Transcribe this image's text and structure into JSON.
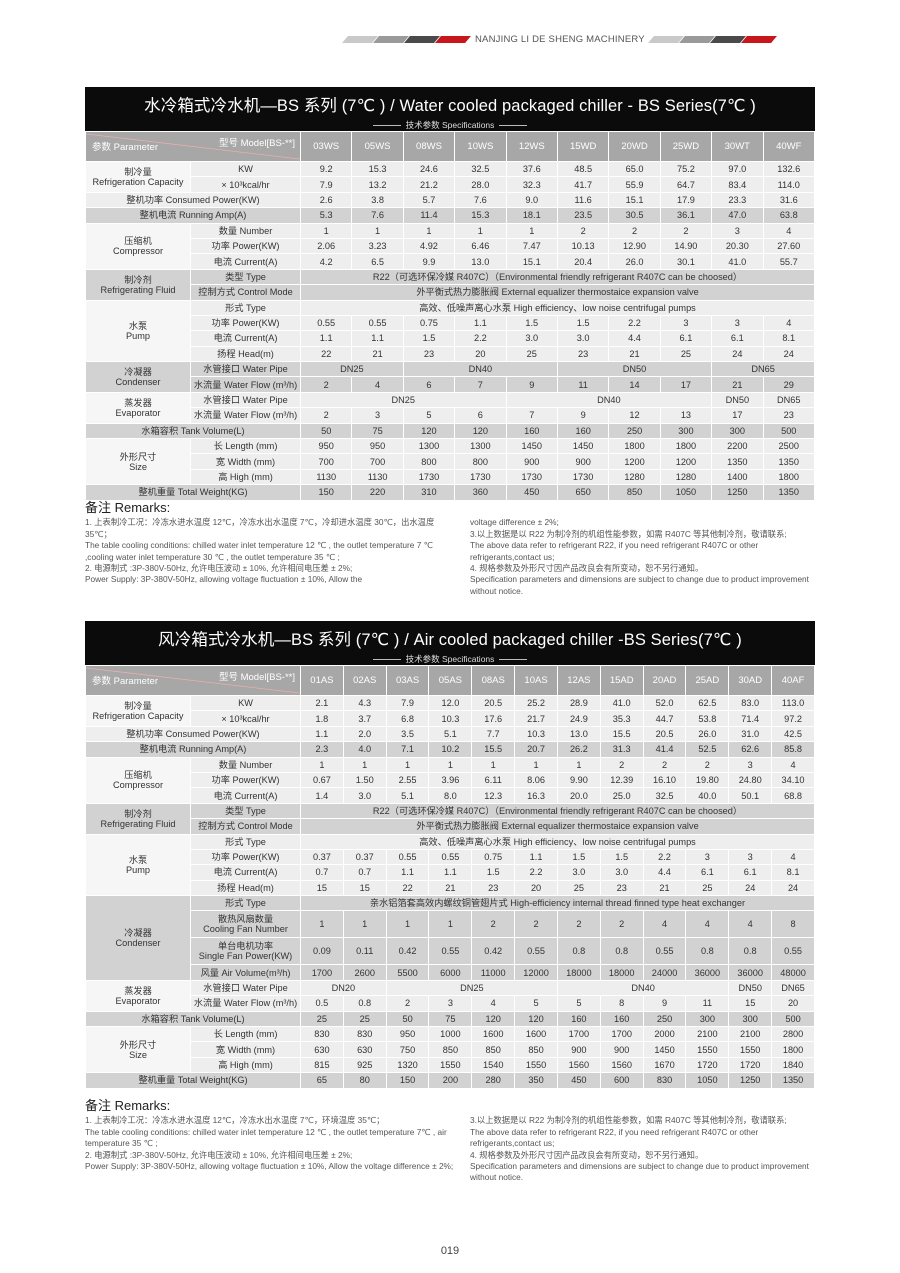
{
  "header": {
    "brand": "NANJING LI DE SHENG MACHINERY"
  },
  "colors": {
    "accent": "#c8161d",
    "title_bg": "#0b0b0b",
    "model_header": "#a7a7a7"
  },
  "table1": {
    "title": "水冷箱式冷水机—BS 系列 (7℃ ) / Water cooled packaged chiller - BS Series(7℃ )",
    "subtitle": "技术参数 Specifications",
    "param_label": "参数 Parameter",
    "model_label": "型号 Model[BS-**]",
    "models": [
      "03WS",
      "05WS",
      "08WS",
      "10WS",
      "12WS",
      "15WD",
      "20WD",
      "25WD",
      "30WT",
      "40WF"
    ],
    "rows": [
      {
        "group": "制冷量\nRefrigeration Capacity",
        "span": 2,
        "sub": "KW",
        "values": [
          "9.2",
          "15.3",
          "24.6",
          "32.5",
          "37.6",
          "48.5",
          "65.0",
          "75.2",
          "97.0",
          "132.6"
        ]
      },
      {
        "sub": "× 10³kcal/hr",
        "values": [
          "7.9",
          "13.2",
          "21.2",
          "28.0",
          "32.3",
          "41.7",
          "55.9",
          "64.7",
          "83.4",
          "114.0"
        ]
      },
      {
        "label": "整机功率 Consumed Power(KW)",
        "values": [
          "2.6",
          "3.8",
          "5.7",
          "7.6",
          "9.0",
          "11.6",
          "15.1",
          "17.9",
          "23.3",
          "31.6"
        ]
      },
      {
        "label": "整机电流 Running Amp(A)",
        "values": [
          "5.3",
          "7.6",
          "11.4",
          "15.3",
          "18.1",
          "23.5",
          "30.5",
          "36.1",
          "47.0",
          "63.8"
        ]
      },
      {
        "group": "压缩机\nCompressor",
        "span": 3,
        "sub": "数量 Number",
        "values": [
          "1",
          "1",
          "1",
          "1",
          "1",
          "2",
          "2",
          "2",
          "3",
          "4"
        ]
      },
      {
        "sub": "功率 Power(KW)",
        "values": [
          "2.06",
          "3.23",
          "4.92",
          "6.46",
          "7.47",
          "10.13",
          "12.90",
          "14.90",
          "20.30",
          "27.60"
        ]
      },
      {
        "sub": "电流 Current(A)",
        "values": [
          "4.2",
          "6.5",
          "9.9",
          "13.0",
          "15.1",
          "20.4",
          "26.0",
          "30.1",
          "41.0",
          "55.7"
        ]
      },
      {
        "group": "制冷剂\nRefrigerating Fluid",
        "span": 2,
        "sub": "类型 Type",
        "values": [
          {
            "v": "R22（可选环保冷媒 R407C）（Environmental friendly refrigerant R407C can be choosed）",
            "span": 10
          }
        ]
      },
      {
        "sub": "控制方式 Control Mode",
        "values": [
          {
            "v": "外平衡式热力膨胀阀 External equalizer thermostaice expansion valve",
            "span": 10
          }
        ]
      },
      {
        "group": "水泵\nPump",
        "span": 4,
        "sub": "形式 Type",
        "values": [
          {
            "v": "高效、低噪声离心水泵 High efficiency、low noise centrifugal pumps",
            "span": 10
          }
        ]
      },
      {
        "sub": "功率 Power(KW)",
        "values": [
          "0.55",
          "0.55",
          "0.75",
          "1.1",
          "1.5",
          "1.5",
          "2.2",
          "3",
          "3",
          "4"
        ]
      },
      {
        "sub": "电流 Current(A)",
        "values": [
          "1.1",
          "1.1",
          "1.5",
          "2.2",
          "3.0",
          "3.0",
          "4.4",
          "6.1",
          "6.1",
          "8.1"
        ]
      },
      {
        "sub": "扬程 Head(m)",
        "values": [
          "22",
          "21",
          "23",
          "20",
          "25",
          "23",
          "21",
          "25",
          "24",
          "24"
        ]
      },
      {
        "group": "冷凝器\nCondenser",
        "span": 2,
        "sub": "水管接口 Water Pipe",
        "values": [
          {
            "v": "DN25",
            "span": 2
          },
          {
            "v": "DN40",
            "span": 3
          },
          {
            "v": "DN50",
            "span": 3
          },
          {
            "v": "DN65",
            "span": 2
          }
        ]
      },
      {
        "sub": "水流量 Water Flow (m³/h)",
        "values": [
          "2",
          "4",
          "6",
          "7",
          "9",
          "11",
          "14",
          "17",
          "21",
          "29"
        ]
      },
      {
        "group": "蒸发器\nEvaporator",
        "span": 2,
        "sub": "水管接口 Water Pipe",
        "values": [
          {
            "v": "DN25",
            "span": 4
          },
          {
            "v": "DN40",
            "span": 4
          },
          "DN50",
          "DN65"
        ]
      },
      {
        "sub": "水流量 Water Flow (m³/h)",
        "values": [
          "2",
          "3",
          "5",
          "6",
          "7",
          "9",
          "12",
          "13",
          "17",
          "23"
        ]
      },
      {
        "label": "水箱容积 Tank Volume(L)",
        "values": [
          "50",
          "75",
          "120",
          "120",
          "160",
          "160",
          "250",
          "300",
          "300",
          "500"
        ]
      },
      {
        "group": "外形尺寸\nSize",
        "span": 3,
        "sub": "长 Length (mm)",
        "values": [
          "950",
          "950",
          "1300",
          "1300",
          "1450",
          "1450",
          "1800",
          "1800",
          "2200",
          "2500"
        ]
      },
      {
        "sub": "宽 Width (mm)",
        "values": [
          "700",
          "700",
          "800",
          "800",
          "900",
          "900",
          "1200",
          "1200",
          "1350",
          "1350"
        ]
      },
      {
        "sub": "高 High (mm)",
        "values": [
          "1130",
          "1130",
          "1730",
          "1730",
          "1730",
          "1730",
          "1280",
          "1280",
          "1400",
          "1800"
        ]
      },
      {
        "label": "整机重量 Total Weight(KG)",
        "values": [
          "150",
          "220",
          "310",
          "360",
          "450",
          "650",
          "850",
          "1050",
          "1250",
          "1350"
        ]
      }
    ],
    "remarks_title": "备注 Remarks:",
    "remarks_left": "1. 上表制冷工况：冷冻水进水温度 12℃，冷冻水出水温度 7℃，冷却进水温度 30℃，出水温度 35℃；\nThe table cooling conditions: chilled water inlet temperature 12 ℃ , the outlet temperature 7 ℃ ,cooling water inlet temperature 30 ℃ , the outlet temperature 35 ℃ ;\n2. 电源制式 :3P-380V-50Hz, 允许电压波动 ± 10%, 允许相间电压差 ± 2%;\nPower Supply: 3P-380V-50Hz, allowing voltage fluctuation ± 10%, Allow the",
    "remarks_right": "voltage difference ± 2%;\n3.以上数据是以 R22 为制冷剂的机组性能参数，如需 R407C 等其他制冷剂，敬请联系;\nThe above data refer to refrigerant R22, if you need refrigerant R407C or other refrigerants,contact us;\n4. 规格参数及外形尺寸因产品改良会有所变动，恕不另行通知。\nSpecification parameters and dimensions are subject to change due to product improvement without notice."
  },
  "table2": {
    "title": "风冷箱式冷水机—BS 系列 (7℃ ) / Air cooled packaged chiller -BS Series(7℃ )",
    "subtitle": "技术参数 Specifications",
    "param_label": "参数 Parameter",
    "model_label": "型号 Model[BS-**]",
    "models": [
      "01AS",
      "02AS",
      "03AS",
      "05AS",
      "08AS",
      "10AS",
      "12AS",
      "15AD",
      "20AD",
      "25AD",
      "30AD",
      "40AF"
    ],
    "rows": [
      {
        "group": "制冷量\nRefrigeration Capacity",
        "span": 2,
        "sub": "KW",
        "values": [
          "2.1",
          "4.3",
          "7.9",
          "12.0",
          "20.5",
          "25.2",
          "28.9",
          "41.0",
          "52.0",
          "62.5",
          "83.0",
          "113.0"
        ]
      },
      {
        "sub": "× 10³kcal/hr",
        "values": [
          "1.8",
          "3.7",
          "6.8",
          "10.3",
          "17.6",
          "21.7",
          "24.9",
          "35.3",
          "44.7",
          "53.8",
          "71.4",
          "97.2"
        ]
      },
      {
        "label": "整机功率 Consumed Power(KW)",
        "values": [
          "1.1",
          "2.0",
          "3.5",
          "5.1",
          "7.7",
          "10.3",
          "13.0",
          "15.5",
          "20.5",
          "26.0",
          "31.0",
          "42.5"
        ]
      },
      {
        "label": "整机电流 Running Amp(A)",
        "values": [
          "2.3",
          "4.0",
          "7.1",
          "10.2",
          "15.5",
          "20.7",
          "26.2",
          "31.3",
          "41.4",
          "52.5",
          "62.6",
          "85.8"
        ]
      },
      {
        "group": "压缩机\nCompressor",
        "span": 3,
        "sub": "数量 Number",
        "values": [
          "1",
          "1",
          "1",
          "1",
          "1",
          "1",
          "1",
          "2",
          "2",
          "2",
          "3",
          "4"
        ]
      },
      {
        "sub": "功率 Power(KW)",
        "values": [
          "0.67",
          "1.50",
          "2.55",
          "3.96",
          "6.11",
          "8.06",
          "9.90",
          "12.39",
          "16.10",
          "19.80",
          "24.80",
          "34.10"
        ]
      },
      {
        "sub": "电流 Current(A)",
        "values": [
          "1.4",
          "3.0",
          "5.1",
          "8.0",
          "12.3",
          "16.3",
          "20.0",
          "25.0",
          "32.5",
          "40.0",
          "50.1",
          "68.8"
        ]
      },
      {
        "group": "制冷剂\nRefrigerating Fluid",
        "span": 2,
        "sub": "类型 Type",
        "values": [
          {
            "v": "R22（可选环保冷媒 R407C）（Environmental friendly refrigerant R407C can be choosed）",
            "span": 12
          }
        ]
      },
      {
        "sub": "控制方式 Control Mode",
        "values": [
          {
            "v": "外平衡式热力膨胀阀 External equalizer thermostaice expansion valve",
            "span": 12
          }
        ]
      },
      {
        "group": "水泵\nPump",
        "span": 4,
        "sub": "形式 Type",
        "values": [
          {
            "v": "高效、低噪声离心水泵 High efficiency、low noise centrifugal pumps",
            "span": 12
          }
        ]
      },
      {
        "sub": "功率 Power(KW)",
        "values": [
          "0.37",
          "0.37",
          "0.55",
          "0.55",
          "0.75",
          "1.1",
          "1.5",
          "1.5",
          "2.2",
          "3",
          "3",
          "4"
        ]
      },
      {
        "sub": "电流 Current(A)",
        "values": [
          "0.7",
          "0.7",
          "1.1",
          "1.1",
          "1.5",
          "2.2",
          "3.0",
          "3.0",
          "4.4",
          "6.1",
          "6.1",
          "8.1"
        ]
      },
      {
        "sub": "扬程 Head(m)",
        "values": [
          "15",
          "15",
          "22",
          "21",
          "23",
          "20",
          "25",
          "23",
          "21",
          "25",
          "24",
          "24"
        ]
      },
      {
        "group": "冷凝器\nCondenser",
        "span": 4,
        "sub": "形式 Type",
        "values": [
          {
            "v": "亲水铝箔套高效内螺纹铜管翅片式 High-efficiency internal thread finned type heat exchanger",
            "span": 12
          }
        ]
      },
      {
        "sub": "散热风扇数量\nCooling Fan Number",
        "values": [
          "1",
          "1",
          "1",
          "1",
          "2",
          "2",
          "2",
          "2",
          "4",
          "4",
          "4",
          "8"
        ]
      },
      {
        "sub": "单台电机功率\nSingle Fan Power(KW)",
        "values": [
          "0.09",
          "0.11",
          "0.42",
          "0.55",
          "0.42",
          "0.55",
          "0.8",
          "0.8",
          "0.55",
          "0.8",
          "0.8",
          "0.55"
        ]
      },
      {
        "sub": "风量 Air Volume(m³/h)",
        "values": [
          "1700",
          "2600",
          "5500",
          "6000",
          "11000",
          "12000",
          "18000",
          "18000",
          "24000",
          "36000",
          "36000",
          "48000"
        ]
      },
      {
        "group": "蒸发器\nEvaporator",
        "span": 2,
        "sub": "水管接口 Water Pipe",
        "values": [
          {
            "v": "DN20",
            "span": 2
          },
          {
            "v": "DN25",
            "span": 4
          },
          {
            "v": "DN40",
            "span": 4
          },
          "DN50",
          "DN65"
        ]
      },
      {
        "sub": "水流量 Water Flow (m³/h)",
        "values": [
          "0.5",
          "0.8",
          "2",
          "3",
          "4",
          "5",
          "5",
          "8",
          "9",
          "11",
          "15",
          "20"
        ]
      },
      {
        "label": "水箱容积 Tank Volume(L)",
        "values": [
          "25",
          "25",
          "50",
          "75",
          "120",
          "120",
          "160",
          "160",
          "250",
          "300",
          "300",
          "500"
        ]
      },
      {
        "group": "外形尺寸\nSize",
        "span": 3,
        "sub": "长 Length (mm)",
        "values": [
          "830",
          "830",
          "950",
          "1000",
          "1600",
          "1600",
          "1700",
          "1700",
          "2000",
          "2100",
          "2100",
          "2800"
        ]
      },
      {
        "sub": "宽 Width (mm)",
        "values": [
          "630",
          "630",
          "750",
          "850",
          "850",
          "850",
          "900",
          "900",
          "1450",
          "1550",
          "1550",
          "1800"
        ]
      },
      {
        "sub": "高 High (mm)",
        "values": [
          "815",
          "925",
          "1320",
          "1550",
          "1540",
          "1550",
          "1560",
          "1560",
          "1670",
          "1720",
          "1720",
          "1840"
        ]
      },
      {
        "label": "整机重量 Total Weight(KG)",
        "values": [
          "65",
          "80",
          "150",
          "200",
          "280",
          "350",
          "450",
          "600",
          "830",
          "1050",
          "1250",
          "1350"
        ]
      }
    ],
    "remarks_title": "备注 Remarks:",
    "remarks_left": "1. 上表制冷工况：冷冻水进水温度 12℃，冷冻水出水温度 7℃，环境温度 35℃；\nThe table cooling conditions: chilled water inlet temperature 12 ℃ , the outlet temperature 7℃ , air temperature 35 ℃ ;\n2. 电源制式 :3P-380V-50Hz, 允许电压波动 ± 10%, 允许相间电压差 ± 2%;\nPower Supply: 3P-380V-50Hz, allowing voltage fluctuation ± 10%, Allow the voltage difference ± 2%;",
    "remarks_right": "3.以上数据是以 R22 为制冷剂的机组性能参数，如需 R407C 等其他制冷剂，敬请联系;\nThe above data refer to refrigerant R22, if you need refrigerant R407C or other refrigerants,contact us;\n4. 规格参数及外形尺寸因产品改良会有所变动，恕不另行通知。\nSpecification parameters and dimensions are subject to change due to product improvement without notice."
  },
  "page_number": "019"
}
